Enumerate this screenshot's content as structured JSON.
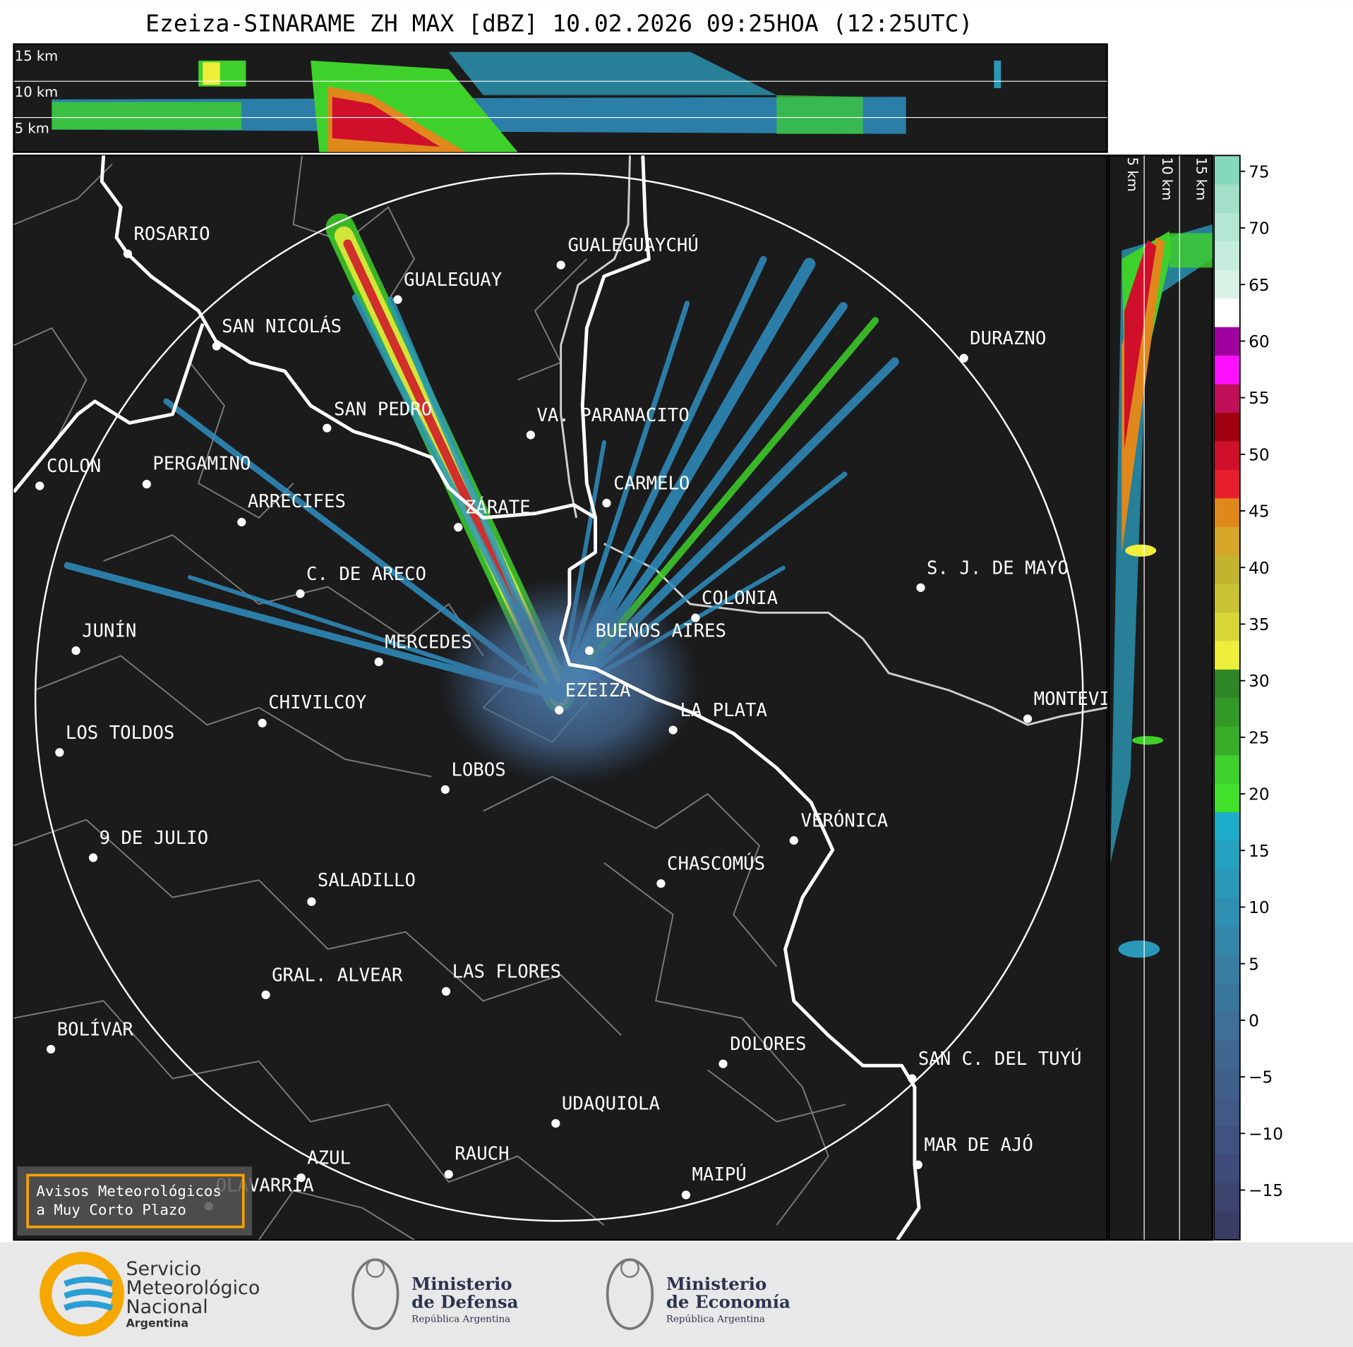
{
  "title": "Ezeiza-SINARAME ZH MAX [dBZ] 10.02.2026 09:25HOA (12:25UTC)",
  "top_panel": {
    "levels": [
      "15 km",
      "10 km",
      "5 km"
    ]
  },
  "side_panel": {
    "levels": [
      "5 km",
      "10 km",
      "15 km"
    ]
  },
  "cities": [
    "ROSARIO",
    "GUALEGUAYCHÚ",
    "GUALEGUAY",
    "SAN NICOLÁS",
    "DURAZNO",
    "SAN PEDRO",
    "VA. PARANACITO",
    "COLON",
    "PERGAMINO",
    "CARMELO",
    "ARRECIFES",
    "ZÁRATE",
    "C. DE ARECO",
    "S. J. DE MAYO",
    "COLONIA",
    "BUENOS AIRES",
    "JUNÍN",
    "MERCEDES",
    "EZEIZA",
    "MONTEVIDEO",
    "CHIVILCOY",
    "LA PLATA",
    "LOS TOLDOS",
    "LOBOS",
    "VERÓNICA",
    "9 DE JULIO",
    "CHASCOMÚS",
    "SALADILLO",
    "GRAL. ALVEAR",
    "LAS FLORES",
    "BOLÍVAR",
    "DOLORES",
    "SAN C. DEL TUYÚ",
    "UDAQUIOLA",
    "MAR DE AJÓ",
    "RAUCH",
    "AZUL",
    "OLAVARRÍA",
    "MAIPÚ"
  ],
  "notice": [
    "Avisos Meteorológicos",
    "a Muy Corto Plazo"
  ],
  "colorbar": {
    "lim": [
      -19.4,
      76.4
    ],
    "ticks": [
      75,
      70,
      65,
      60,
      55,
      50,
      45,
      40,
      35,
      30,
      25,
      20,
      15,
      10,
      5,
      0,
      {
        "value": -5,
        "label": "−5"
      },
      {
        "value": -10,
        "label": "−10"
      },
      {
        "value": -15,
        "label": "−15"
      }
    ],
    "colors": [
      "#3a3d66",
      "#3d4470",
      "#3f4b78",
      "#40527f",
      "#405985",
      "#40608b",
      "#406790",
      "#3f6e96",
      "#3b769c",
      "#387ea3",
      "#3486aa",
      "#2f8fb1",
      "#2a98b8",
      "#24a2c0",
      "#1eaccb",
      "#42e02a",
      "#3fd12b",
      "#38ad2a",
      "#339a27",
      "#2e8726",
      "#eeee3a",
      "#d8d636",
      "#c9c233",
      "#c2b42f",
      "#d8a628",
      "#e0881c",
      "#e8202e",
      "#d0102a",
      "#a00010",
      "#c0105a",
      "#ff10ff",
      "#a000a0",
      "#ffffff",
      "#d8f2e6",
      "#c6ecdd",
      "#b4e6d4",
      "#a2e0ca",
      "#86d8bc"
    ]
  },
  "footer": {
    "smn": [
      "Servicio",
      "Meteorológico",
      "Nacional",
      "Argentina"
    ],
    "defensa": [
      "Ministerio",
      "de Defensa",
      "República Argentina"
    ],
    "economia": [
      "Ministerio",
      "de Economía",
      "República Argentina"
    ]
  }
}
